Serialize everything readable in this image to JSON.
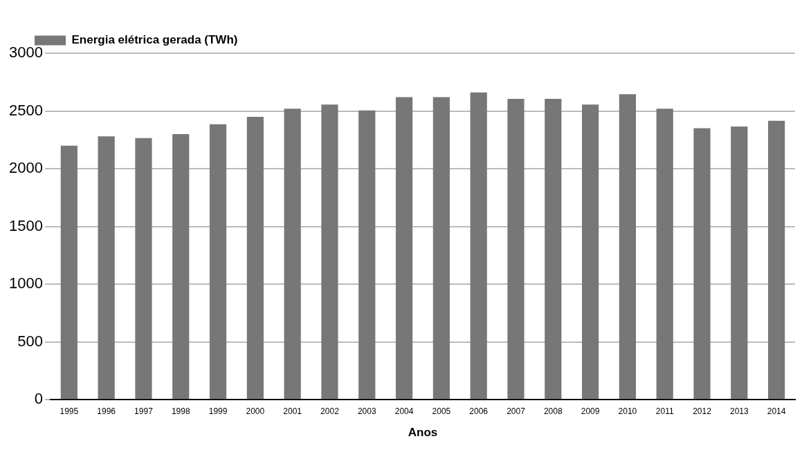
{
  "chart_data": {
    "type": "bar",
    "xlabel": "Anos",
    "categories": [
      "1995",
      "1996",
      "1997",
      "1998",
      "1999",
      "2000",
      "2001",
      "2002",
      "2003",
      "2004",
      "2005",
      "2006",
      "2007",
      "2008",
      "2009",
      "2010",
      "2011",
      "2012",
      "2013",
      "2014"
    ],
    "series": [
      {
        "name": "Energia elétrica gerada (TWh)",
        "color": "#777777",
        "values": [
          2200,
          2280,
          2265,
          2300,
          2385,
          2450,
          2520,
          2555,
          2505,
          2620,
          2620,
          2660,
          2605,
          2605,
          2555,
          2645,
          2520,
          2350,
          2365,
          2415
        ]
      }
    ],
    "ylim": [
      0,
      3000
    ],
    "yticks": [
      0,
      500,
      1000,
      1500,
      2000,
      2500,
      3000
    ],
    "grid": "y",
    "legend": "top left"
  }
}
